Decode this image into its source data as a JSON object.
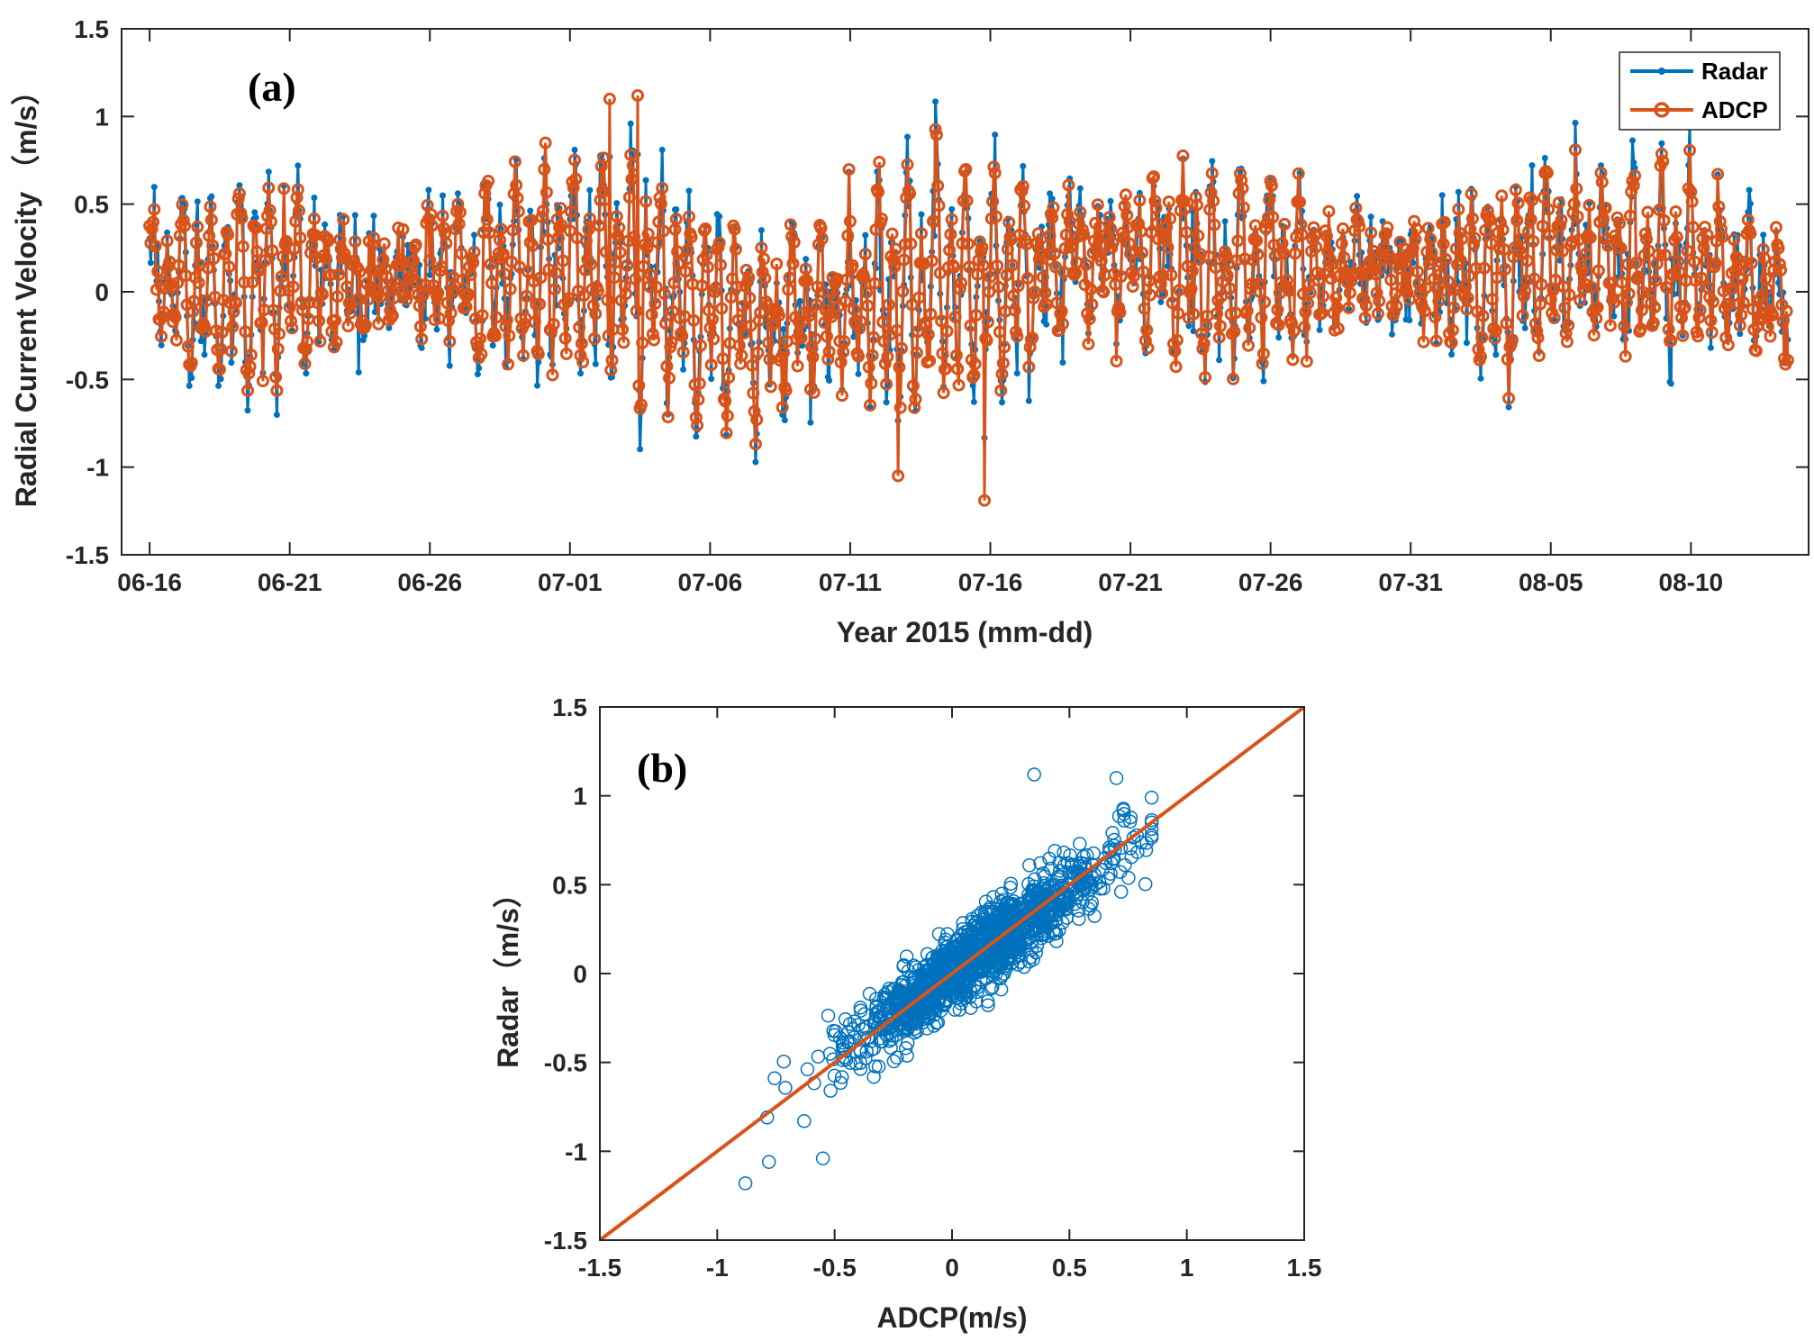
{
  "chart_data": [
    {
      "type": "line",
      "panel_label": "(a)",
      "xlabel": "Year 2015 (mm-dd)",
      "ylabel": "Radial Current Velocity （m/s）",
      "ylim": [
        -1.5,
        1.5
      ],
      "yticks": [
        "-1.5",
        "-1",
        "-0.5",
        "0",
        "0.5",
        "1",
        "1.5"
      ],
      "xticks": [
        "06-16",
        "06-21",
        "06-26",
        "07-01",
        "07-06",
        "07-11",
        "07-16",
        "07-21",
        "07-26",
        "07-31",
        "08-05",
        "08-10"
      ],
      "xlim_days": [
        -1,
        57.5
      ],
      "x_start_day": 0,
      "x_end_day": 57.5,
      "samples_per_day": 24,
      "grid": false,
      "legend_position": "top-right",
      "series": [
        {
          "name": "Radar",
          "color": "#0072BD",
          "marker": "dot",
          "description": "hourly radar radial current, oscillating tidally between about -0.8 and 0.8 m/s"
        },
        {
          "name": "ADCP",
          "color": "#D95319",
          "marker": "circle",
          "description": "hourly ADCP radial current, oscillating tidally between about -1.2 and 1.1 m/s"
        }
      ],
      "envelope": {
        "day": [
          0,
          3,
          5,
          8,
          10,
          12,
          14,
          16,
          18,
          20,
          22,
          24,
          26,
          28,
          30,
          32,
          34,
          36,
          38,
          40,
          42,
          44,
          46,
          48,
          50,
          52,
          54,
          56,
          57.5
        ],
        "amplitude": [
          0.28,
          0.55,
          0.45,
          0.22,
          0.3,
          0.48,
          0.52,
          0.58,
          0.65,
          0.55,
          0.45,
          0.35,
          0.55,
          0.68,
          0.58,
          0.42,
          0.32,
          0.42,
          0.5,
          0.45,
          0.3,
          0.22,
          0.32,
          0.5,
          0.48,
          0.35,
          0.5,
          0.4,
          0.28
        ],
        "mean": [
          0.05,
          0.02,
          0.08,
          0.05,
          0.1,
          0.1,
          0.15,
          0.12,
          0.05,
          -0.1,
          -0.2,
          -0.1,
          0.0,
          0.02,
          0.05,
          0.15,
          0.18,
          0.2,
          0.1,
          0.15,
          0.1,
          0.15,
          0.1,
          0.1,
          0.2,
          0.2,
          0.18,
          0.1,
          0.0
        ]
      },
      "annotated_extremes": [
        {
          "day": 16.4,
          "value": 1.1
        },
        {
          "day": 17.4,
          "value": 1.12
        },
        {
          "day": 26.7,
          "value": -1.05
        },
        {
          "day": 29.8,
          "value": -1.19
        },
        {
          "day": 58.5,
          "value": -0.39
        }
      ]
    },
    {
      "type": "scatter",
      "panel_label": "(b)",
      "xlabel": "ADCP(m/s)",
      "ylabel": "Radar（m/s）",
      "xlim": [
        -1.5,
        1.5
      ],
      "ylim": [
        -1.5,
        1.5
      ],
      "xticks": [
        "-1.5",
        "-1",
        "-0.5",
        "0",
        "0.5",
        "1",
        "1.5"
      ],
      "yticks": [
        "-1.5",
        "-1",
        "-0.5",
        "0",
        "0.5",
        "1",
        "1.5"
      ],
      "grid": false,
      "marker_color": "#0072BD",
      "reference_line": {
        "color": "#D95319",
        "from": [
          -1.5,
          -1.5
        ],
        "to": [
          1.5,
          1.5
        ]
      },
      "cloud": {
        "n_points": 1400,
        "mean_x": 0.1,
        "mean_y": 0.1,
        "slope": 0.93,
        "std_x": 0.27,
        "residual_std": 0.1
      },
      "outliers": [
        {
          "x": -0.88,
          "y": -1.18
        },
        {
          "x": -0.78,
          "y": -1.06
        },
        {
          "x": -0.55,
          "y": -1.04
        },
        {
          "x": -0.63,
          "y": -0.83
        },
        {
          "x": 0.35,
          "y": 1.12
        },
        {
          "x": 0.7,
          "y": 1.1
        },
        {
          "x": 0.85,
          "y": 0.85
        },
        {
          "x": 0.73,
          "y": 0.92
        },
        {
          "x": 0.72,
          "y": 0.46
        }
      ]
    }
  ]
}
